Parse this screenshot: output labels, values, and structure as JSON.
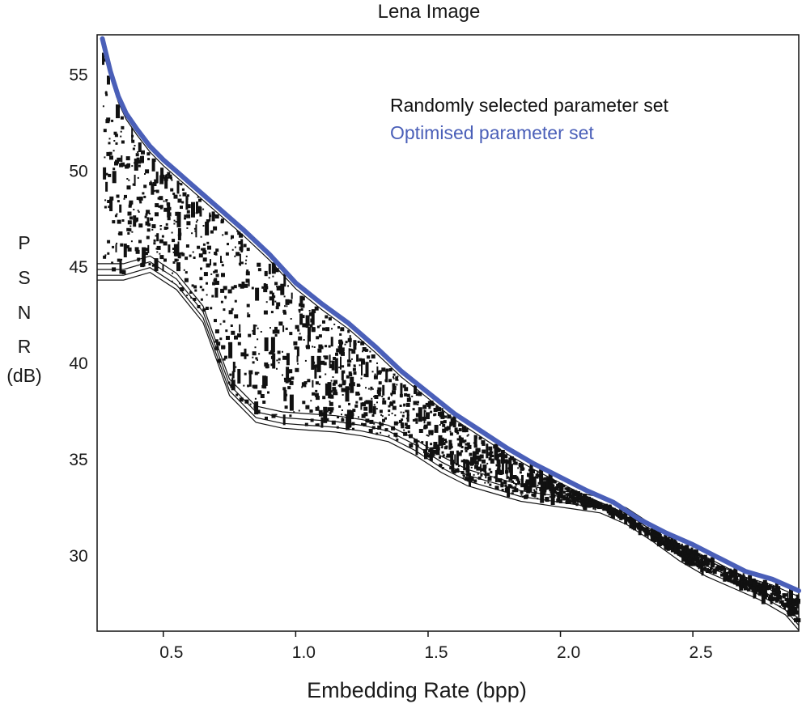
{
  "chart_data": {
    "type": "scatter",
    "title": "Lena Image",
    "xlabel": "Embedding Rate (bpp)",
    "ylabel_letters": [
      "P",
      "S",
      "N",
      "R",
      "(dB)"
    ],
    "xlim": [
      0.25,
      2.9
    ],
    "ylim": [
      26.5,
      57.5
    ],
    "x_ticks": [
      {
        "value": 0.5,
        "label": "0.5"
      },
      {
        "value": 1.0,
        "label": "1.0"
      },
      {
        "value": 1.5,
        "label": "1.5"
      },
      {
        "value": 2.0,
        "label": "2.0"
      },
      {
        "value": 2.5,
        "label": "2.5"
      }
    ],
    "y_ticks": [
      {
        "value": 30,
        "label": "30"
      },
      {
        "value": 35,
        "label": "35"
      },
      {
        "value": 40,
        "label": "40"
      },
      {
        "value": 45,
        "label": "45"
      },
      {
        "value": 50,
        "label": "50"
      },
      {
        "value": 55,
        "label": "55"
      }
    ],
    "grid": false,
    "legend": [
      {
        "label": "Randomly selected parameter set",
        "color": "#111111"
      },
      {
        "label": "Optimised parameter set",
        "color": "#4a5fb8"
      }
    ],
    "series": [
      {
        "name": "Optimised parameter set",
        "style": "line",
        "color": "#4a5fb8",
        "x": [
          0.27,
          0.3,
          0.33,
          0.36,
          0.4,
          0.45,
          0.5,
          0.55,
          0.6,
          0.7,
          0.8,
          0.9,
          1.0,
          1.1,
          1.2,
          1.3,
          1.4,
          1.5,
          1.6,
          1.7,
          1.8,
          1.9,
          2.0,
          2.1,
          2.2,
          2.3,
          2.4,
          2.5,
          2.6,
          2.7,
          2.8,
          2.9
        ],
        "y": [
          57.3,
          55.6,
          54.3,
          53.4,
          52.6,
          51.7,
          51.0,
          50.4,
          49.8,
          48.6,
          47.4,
          46.1,
          44.6,
          43.5,
          42.5,
          41.3,
          40.0,
          38.9,
          37.8,
          36.9,
          36.0,
          35.2,
          34.5,
          33.8,
          33.2,
          32.3,
          31.6,
          31.0,
          30.3,
          29.6,
          29.2,
          28.6
        ]
      },
      {
        "name": "Randomly selected parameter set",
        "style": "points",
        "color": "#111111",
        "lower_envelope": {
          "x": [
            0.25,
            0.35,
            0.45,
            0.55,
            0.65,
            0.75,
            0.85,
            0.95,
            1.05,
            1.15,
            1.25,
            1.35,
            1.45,
            1.55,
            1.65,
            1.75,
            1.85,
            1.95,
            2.05,
            2.15,
            2.25,
            2.35,
            2.45,
            2.55,
            2.65,
            2.75,
            2.85,
            2.9
          ],
          "y": [
            45.0,
            45.0,
            45.4,
            44.5,
            42.8,
            39.0,
            37.6,
            37.3,
            37.2,
            37.1,
            36.9,
            36.6,
            35.9,
            35.0,
            34.3,
            33.9,
            33.5,
            33.3,
            33.1,
            32.9,
            32.3,
            31.4,
            30.4,
            29.6,
            29.0,
            28.4,
            27.6,
            26.8
          ]
        },
        "approx_points": 2200
      }
    ]
  }
}
